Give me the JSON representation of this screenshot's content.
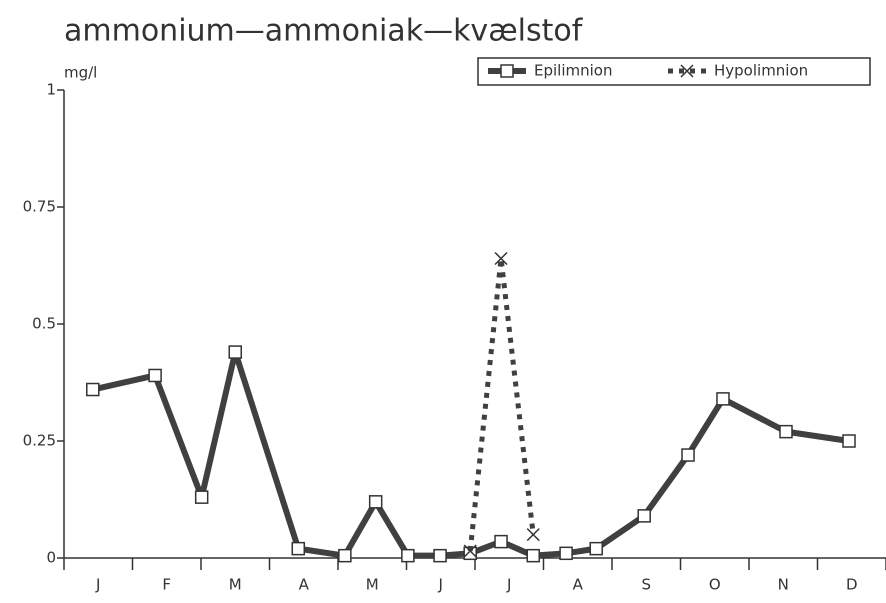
{
  "chart_data": {
    "type": "line",
    "title": "ammonium—ammoniak—kvælstof",
    "y_label": "mg/l",
    "categories": [
      "J",
      "F",
      "M",
      "A",
      "M",
      "J",
      "J",
      "A",
      "S",
      "O",
      "N",
      "D"
    ],
    "xlim": [
      0,
      12
    ],
    "ylim": [
      0,
      1
    ],
    "yticks": [
      0,
      0.25,
      0.5,
      0.75,
      1
    ],
    "series": [
      {
        "name": "Epilimnion",
        "color": "#404040",
        "marker": "square",
        "x": [
          0.42,
          1.33,
          2.01,
          2.5,
          3.42,
          4.1,
          4.55,
          5.02,
          5.49,
          5.93,
          6.38,
          6.85,
          7.33,
          7.77,
          8.47,
          9.11,
          9.62,
          10.54,
          11.46
        ],
        "values": [
          0.36,
          0.39,
          0.13,
          0.44,
          0.02,
          0.005,
          0.12,
          0.005,
          0.005,
          0.01,
          0.035,
          0.005,
          0.01,
          0.02,
          0.09,
          0.22,
          0.34,
          0.27,
          0.25
        ]
      },
      {
        "name": "Hypolimnion",
        "color": "#404040",
        "marker": "x",
        "dash": true,
        "x": [
          5.93,
          6.38,
          6.85
        ],
        "values": [
          0.015,
          0.64,
          0.05
        ]
      }
    ]
  }
}
